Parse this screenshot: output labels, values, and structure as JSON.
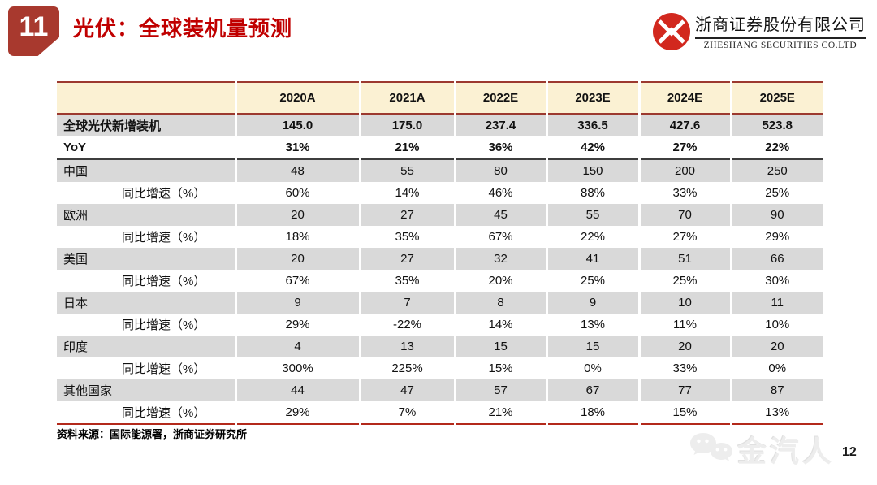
{
  "slide": {
    "badge_number": "11",
    "title": "光伏：全球装机量预测",
    "page_number": "12"
  },
  "logo": {
    "company_cn": "浙商证券股份有限公司",
    "company_en": "ZHESHANG SECURITIES CO.LTD"
  },
  "table": {
    "columns": [
      "",
      "2020A",
      "2021A",
      "2022E",
      "2023E",
      "2024E",
      "2025E"
    ],
    "rows": [
      {
        "kind": "total",
        "label": "全球光伏新增装机",
        "values": [
          "145.0",
          "175.0",
          "237.4",
          "336.5",
          "427.6",
          "523.8"
        ]
      },
      {
        "kind": "yoy",
        "label": "YoY",
        "values": [
          "31%",
          "21%",
          "36%",
          "42%",
          "27%",
          "22%"
        ]
      },
      {
        "kind": "country",
        "label": "中国",
        "values": [
          "48",
          "55",
          "80",
          "150",
          "200",
          "250"
        ]
      },
      {
        "kind": "growth",
        "label": "同比增速（%）",
        "values": [
          "60%",
          "14%",
          "46%",
          "88%",
          "33%",
          "25%"
        ]
      },
      {
        "kind": "country",
        "label": "欧洲",
        "values": [
          "20",
          "27",
          "45",
          "55",
          "70",
          "90"
        ]
      },
      {
        "kind": "growth",
        "label": "同比增速（%）",
        "values": [
          "18%",
          "35%",
          "67%",
          "22%",
          "27%",
          "29%"
        ]
      },
      {
        "kind": "country",
        "label": "美国",
        "values": [
          "20",
          "27",
          "32",
          "41",
          "51",
          "66"
        ]
      },
      {
        "kind": "growth",
        "label": "同比增速（%）",
        "values": [
          "67%",
          "35%",
          "20%",
          "25%",
          "25%",
          "30%"
        ]
      },
      {
        "kind": "country",
        "label": "日本",
        "values": [
          "9",
          "7",
          "8",
          "9",
          "10",
          "11"
        ]
      },
      {
        "kind": "growth",
        "label": "同比增速（%）",
        "values": [
          "29%",
          "-22%",
          "14%",
          "13%",
          "11%",
          "10%"
        ]
      },
      {
        "kind": "country",
        "label": "印度",
        "values": [
          "4",
          "13",
          "15",
          "15",
          "20",
          "20"
        ]
      },
      {
        "kind": "growth",
        "label": "同比增速（%）",
        "values": [
          "300%",
          "225%",
          "15%",
          "0%",
          "33%",
          "0%"
        ]
      },
      {
        "kind": "country",
        "label": "其他国家",
        "values": [
          "44",
          "47",
          "57",
          "67",
          "77",
          "87"
        ]
      },
      {
        "kind": "growth",
        "label": "同比增速（%）",
        "values": [
          "29%",
          "7%",
          "21%",
          "18%",
          "15%",
          "13%"
        ]
      }
    ]
  },
  "footer": {
    "source": "资料来源：国际能源署，浙商证券研究所"
  },
  "watermark": {
    "text": "金汽人"
  },
  "colors": {
    "title_red": "#C00000",
    "badge_red": "#A8392E",
    "header_cream": "#FBF1D3",
    "row_gray": "#D9D9D9",
    "table_border_red": "#9C392F",
    "table_bottom_red": "#B3291B",
    "yoy_divider_dark": "#3D3D3D",
    "logo_red": "#D2281E"
  }
}
